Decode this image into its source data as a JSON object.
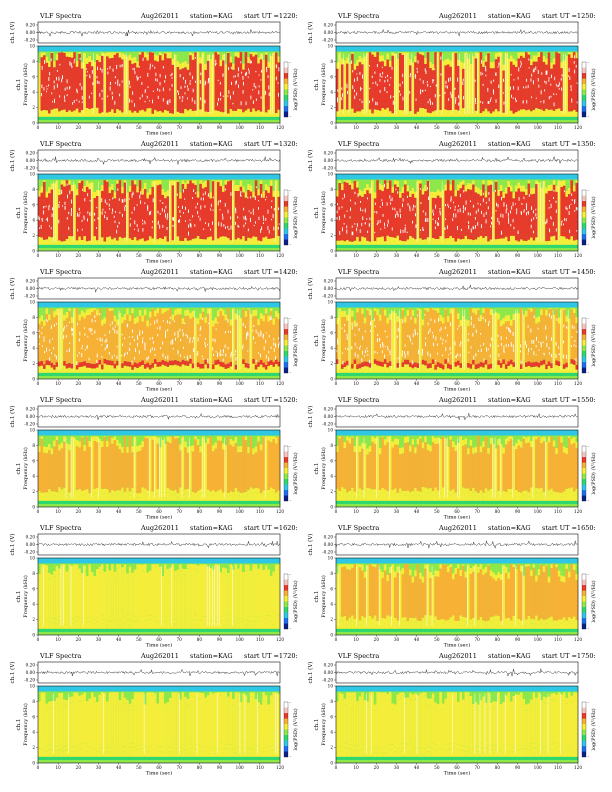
{
  "header_parts": {
    "spectra": "VLF Spectra",
    "date": "Aug262011",
    "station": "station=KAG",
    "start": "start  UT  ="
  },
  "labels": {
    "waveform_axis": "ch.1 (V)",
    "freq_axis_ch": "ch.1",
    "freq_axis": "Frequency  (kHz)",
    "time_axis": "Time  (sec)",
    "colorbar": "log(PSD) (V²/Hz)"
  },
  "colors": {
    "scale": [
      "#0a1e8c",
      "#1e6ef0",
      "#2ec8e6",
      "#2fd86e",
      "#8ee84a",
      "#f4ee3a",
      "#f7b236",
      "#e83a2a",
      "#f6c6c0",
      "#ffffff"
    ],
    "trace": "#222222",
    "frame": "#111111"
  },
  "chart_data": [
    {
      "type": "heatmap",
      "title": "VLF Spectra  Aug262011  station=KAG  start  UT  =1220:0",
      "start_ut": "1220:0",
      "xlabel": "Time  (sec)",
      "ylabel": "Frequency  (kHz)",
      "xlim": [
        0,
        120
      ],
      "ylim": [
        0,
        10
      ],
      "xticks": [
        "0",
        "10",
        "20",
        "30",
        "40",
        "50",
        "60",
        "70",
        "80",
        "90",
        "100",
        "110",
        "120"
      ],
      "yticks": [
        "0",
        "2",
        "4",
        "6",
        "8",
        "10"
      ],
      "wave_ylabel": "ch.1 (V)",
      "wave_yticks": [
        "0.20",
        "0.00",
        "-0.20"
      ],
      "colorbar_label": "log(PSD) (V²/Hz)",
      "colorbar_ticks": [
        "-",
        "-"
      ],
      "intensity": 0.9
    },
    {
      "type": "heatmap",
      "title": "VLF Spectra  Aug262011  station=KAG  start  UT  =1250:0",
      "start_ut": "1250:0",
      "xlabel": "Time  (sec)",
      "ylabel": "Frequency  (kHz)",
      "xlim": [
        0,
        120
      ],
      "ylim": [
        0,
        10
      ],
      "xticks": [
        "0",
        "10",
        "20",
        "30",
        "40",
        "50",
        "60",
        "70",
        "80",
        "90",
        "100",
        "110",
        "120"
      ],
      "yticks": [
        "0",
        "2",
        "4",
        "6",
        "8",
        "10"
      ],
      "wave_ylabel": "ch.1 (V)",
      "wave_yticks": [
        "0.20",
        "0.00",
        "-0.20"
      ],
      "colorbar_label": "log(PSD) (V²/Hz)",
      "colorbar_ticks": [
        "-",
        "-"
      ],
      "intensity": 0.88
    },
    {
      "type": "heatmap",
      "title": "VLF Spectra  Aug262011  station=KAG  start  UT  =1320:0",
      "start_ut": "1320:0",
      "xlabel": "Time  (sec)",
      "ylabel": "Frequency  (kHz)",
      "xlim": [
        0,
        120
      ],
      "ylim": [
        0,
        10
      ],
      "xticks": [
        "0",
        "10",
        "20",
        "30",
        "40",
        "50",
        "60",
        "70",
        "80",
        "90",
        "100",
        "110",
        "120"
      ],
      "yticks": [
        "0",
        "2",
        "4",
        "6",
        "8",
        "10"
      ],
      "wave_ylabel": "ch.1 (V)",
      "wave_yticks": [
        "0.20",
        "0.00",
        "-0.20"
      ],
      "colorbar_label": "log(PSD) (V²/Hz)",
      "colorbar_ticks": [
        "-",
        "-"
      ],
      "intensity": 0.75
    },
    {
      "type": "heatmap",
      "title": "VLF Spectra  Aug262011  station=KAG  start  UT  =1350:0",
      "start_ut": "1350:0",
      "xlabel": "Time  (sec)",
      "ylabel": "Frequency  (kHz)",
      "xlim": [
        0,
        120
      ],
      "ylim": [
        0,
        10
      ],
      "xticks": [
        "0",
        "10",
        "20",
        "30",
        "40",
        "50",
        "60",
        "70",
        "80",
        "90",
        "100",
        "110",
        "120"
      ],
      "yticks": [
        "0",
        "2",
        "4",
        "6",
        "8",
        "10"
      ],
      "wave_ylabel": "ch.1 (V)",
      "wave_yticks": [
        "0.20",
        "0.00",
        "-0.20"
      ],
      "colorbar_label": "log(PSD) (V²/Hz)",
      "colorbar_ticks": [
        "-",
        "-"
      ],
      "intensity": 0.74
    },
    {
      "type": "heatmap",
      "title": "VLF Spectra  Aug262011  station=KAG  start  UT  =1420:0",
      "start_ut": "1420:0",
      "xlabel": "Time  (sec)",
      "ylabel": "Frequency  (kHz)",
      "xlim": [
        0,
        120
      ],
      "ylim": [
        0,
        10
      ],
      "xticks": [
        "0",
        "10",
        "20",
        "30",
        "40",
        "50",
        "60",
        "70",
        "80",
        "90",
        "100",
        "110",
        "120"
      ],
      "yticks": [
        "0",
        "2",
        "4",
        "6",
        "8",
        "10"
      ],
      "wave_ylabel": "ch.1 (V)",
      "wave_yticks": [
        "0.20",
        "0.00",
        "-0.20"
      ],
      "colorbar_label": "log(PSD) (V²/Hz)",
      "colorbar_ticks": [
        "-",
        "-"
      ],
      "intensity": 0.7
    },
    {
      "type": "heatmap",
      "title": "VLF Spectra  Aug262011  station=KAG  start  UT  =1450:0",
      "start_ut": "1450:0",
      "xlabel": "Time  (sec)",
      "ylabel": "Frequency  (kHz)",
      "xlim": [
        0,
        120
      ],
      "ylim": [
        0,
        10
      ],
      "xticks": [
        "0",
        "10",
        "20",
        "30",
        "40",
        "50",
        "60",
        "70",
        "80",
        "90",
        "100",
        "110",
        "120"
      ],
      "yticks": [
        "0",
        "2",
        "4",
        "6",
        "8",
        "10"
      ],
      "wave_ylabel": "ch.1 (V)",
      "wave_yticks": [
        "0.20",
        "0.00",
        "-0.20"
      ],
      "colorbar_label": "log(PSD) (V²/Hz)",
      "colorbar_ticks": [
        "-",
        "-"
      ],
      "intensity": 0.7
    },
    {
      "type": "heatmap",
      "title": "VLF Spectra  Aug262011  station=KAG  start  UT  =1520:0",
      "start_ut": "1520:0",
      "xlabel": "Time  (sec)",
      "ylabel": "Frequency  (kHz)",
      "xlim": [
        0,
        120
      ],
      "ylim": [
        0,
        10
      ],
      "xticks": [
        "0",
        "10",
        "20",
        "30",
        "40",
        "50",
        "60",
        "70",
        "80",
        "90",
        "100",
        "110",
        "120"
      ],
      "yticks": [
        "0",
        "2",
        "4",
        "6",
        "8",
        "10"
      ],
      "wave_ylabel": "ch.1 (V)",
      "wave_yticks": [
        "0.20",
        "0.00",
        "-0.20"
      ],
      "colorbar_label": "log(PSD) (V²/Hz)",
      "colorbar_ticks": [
        "-",
        "-"
      ],
      "intensity": 0.55
    },
    {
      "type": "heatmap",
      "title": "VLF Spectra  Aug262011  station=KAG  start  UT  =1550:0",
      "start_ut": "1550:0",
      "xlabel": "Time  (sec)",
      "ylabel": "Frequency  (kHz)",
      "xlim": [
        0,
        120
      ],
      "ylim": [
        0,
        10
      ],
      "xticks": [
        "0",
        "10",
        "20",
        "30",
        "40",
        "50",
        "60",
        "70",
        "80",
        "90",
        "100",
        "110",
        "120"
      ],
      "yticks": [
        "0",
        "2",
        "4",
        "6",
        "8",
        "10"
      ],
      "wave_ylabel": "ch.1 (V)",
      "wave_yticks": [
        "0.20",
        "0.00",
        "-0.20"
      ],
      "colorbar_label": "log(PSD) (V²/Hz)",
      "colorbar_ticks": [
        "-",
        "-"
      ],
      "intensity": 0.55
    },
    {
      "type": "heatmap",
      "title": "VLF Spectra  Aug262011  station=KAG  start  UT  =1620:0",
      "start_ut": "1620:0",
      "xlabel": "Time  (sec)",
      "ylabel": "Frequency  (kHz)",
      "xlim": [
        0,
        120
      ],
      "ylim": [
        0,
        10
      ],
      "xticks": [
        "0",
        "10",
        "20",
        "30",
        "40",
        "50",
        "60",
        "70",
        "80",
        "90",
        "100",
        "110",
        "120"
      ],
      "yticks": [
        "0",
        "2",
        "4",
        "6",
        "8",
        "10"
      ],
      "wave_ylabel": "ch.1 (V)",
      "wave_yticks": [
        "0.20",
        "0.00",
        "-0.20"
      ],
      "colorbar_label": "log(PSD) (V²/Hz)",
      "colorbar_ticks": [
        "-",
        "-"
      ],
      "intensity": 0.5
    },
    {
      "type": "heatmap",
      "title": "VLF Spectra  Aug262011  station=KAG  start  UT  =1650:0",
      "start_ut": "1650:0",
      "xlabel": "Time  (sec)",
      "ylabel": "Frequency  (kHz)",
      "xlim": [
        0,
        120
      ],
      "ylim": [
        0,
        10
      ],
      "xticks": [
        "0",
        "10",
        "20",
        "30",
        "40",
        "50",
        "60",
        "70",
        "80",
        "90",
        "100",
        "110",
        "120"
      ],
      "yticks": [
        "0",
        "2",
        "4",
        "6",
        "8",
        "10"
      ],
      "wave_ylabel": "ch.1 (V)",
      "wave_yticks": [
        "0.20",
        "0.00",
        "-0.20"
      ],
      "colorbar_label": "log(PSD) (V²/Hz)",
      "colorbar_ticks": [
        "-",
        "-"
      ],
      "intensity": 0.55
    },
    {
      "type": "heatmap",
      "title": "VLF Spectra  Aug262011  station=KAG  start  UT  =1720:0",
      "start_ut": "1720:0",
      "xlabel": "Time  (sec)",
      "ylabel": "Frequency  (kHz)",
      "xlim": [
        0,
        120
      ],
      "ylim": [
        0,
        10
      ],
      "xticks": [
        "0",
        "10",
        "20",
        "30",
        "40",
        "50",
        "60",
        "70",
        "80",
        "90",
        "100",
        "110",
        "120"
      ],
      "yticks": [
        "0",
        "2",
        "4",
        "6",
        "8",
        "10"
      ],
      "wave_ylabel": "ch.1 (V)",
      "wave_yticks": [
        "0.20",
        "0.00",
        "-0.20"
      ],
      "colorbar_label": "log(PSD) (V²/Hz)",
      "colorbar_ticks": [
        "-",
        "-"
      ],
      "intensity": 0.5
    },
    {
      "type": "heatmap",
      "title": "VLF Spectra  Aug262011  station=KAG  start  UT  =1750:0",
      "start_ut": "1750:0",
      "xlabel": "Time  (sec)",
      "ylabel": "Frequency  (kHz)",
      "xlim": [
        0,
        120
      ],
      "ylim": [
        0,
        10
      ],
      "xticks": [
        "0",
        "10",
        "20",
        "30",
        "40",
        "50",
        "60",
        "70",
        "80",
        "90",
        "100",
        "110",
        "120"
      ],
      "yticks": [
        "0",
        "2",
        "4",
        "6",
        "8",
        "10"
      ],
      "wave_ylabel": "ch.1 (V)",
      "wave_yticks": [
        "0.20",
        "0.00",
        "-0.20"
      ],
      "colorbar_label": "log(PSD) (V²/Hz)",
      "colorbar_ticks": [
        "-",
        "-"
      ],
      "intensity": 0.45
    }
  ]
}
